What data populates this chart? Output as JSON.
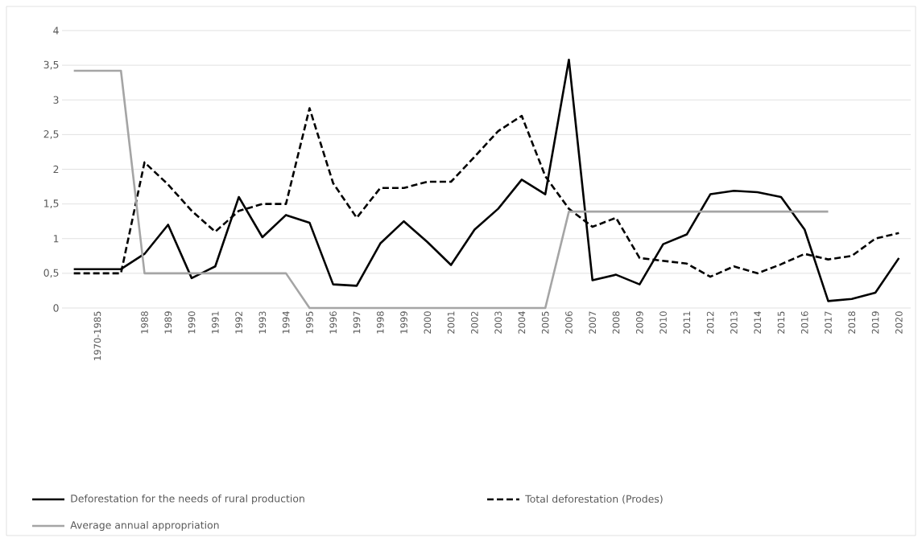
{
  "chart_data": {
    "type": "line",
    "categories": [
      null,
      "1970-1985",
      null,
      "1988",
      "1989",
      "1990",
      "1991",
      "1992",
      "1993",
      "1994",
      "1995",
      "1996",
      "1997",
      "1998",
      "1999",
      "2000",
      "2001",
      "2002",
      "2003",
      "2004",
      "2005",
      "2006",
      "2007",
      "2008",
      "2009",
      "2010",
      "2011",
      "2012",
      "2013",
      "2014",
      "2015",
      "2016",
      "2017",
      "2018",
      "2019",
      "2020"
    ],
    "series": [
      {
        "name": "Deforestation for the needs of rural production",
        "color": "#000000",
        "line_style": "solid",
        "values": [
          0.56,
          0.56,
          0.56,
          0.78,
          1.2,
          0.43,
          0.6,
          1.6,
          1.02,
          1.34,
          1.23,
          0.34,
          0.32,
          0.93,
          1.25,
          0.95,
          0.62,
          1.13,
          1.43,
          1.85,
          1.64,
          3.58,
          0.4,
          0.48,
          0.34,
          0.92,
          1.06,
          1.64,
          1.69,
          1.67,
          1.6,
          1.13,
          0.1,
          0.13,
          0.22,
          0.72
        ]
      },
      {
        "name": "Total deforestation (Prodes)",
        "color": "#000000",
        "line_style": "dashed",
        "values": [
          0.5,
          0.5,
          0.5,
          2.1,
          1.78,
          1.4,
          1.1,
          1.4,
          1.5,
          1.5,
          2.88,
          1.8,
          1.3,
          1.73,
          1.73,
          1.82,
          1.82,
          2.18,
          2.55,
          2.77,
          1.9,
          1.43,
          1.17,
          1.3,
          0.72,
          0.68,
          0.64,
          0.45,
          0.6,
          0.5,
          0.63,
          0.78,
          0.7,
          0.75,
          1.0,
          1.08
        ]
      },
      {
        "name": "Average annual appropriation",
        "color": "#a5a5a5",
        "line_style": "solid",
        "values": [
          3.42,
          3.42,
          3.42,
          0.5,
          0.5,
          0.5,
          0.5,
          0.5,
          0.5,
          0.5,
          0,
          0,
          0,
          0,
          0,
          0,
          0,
          0,
          0,
          0,
          0,
          1.39,
          1.39,
          1.39,
          1.39,
          1.39,
          1.39,
          1.39,
          1.39,
          1.39,
          1.39,
          1.39,
          1.39,
          null,
          null,
          null
        ]
      }
    ],
    "ylim": [
      0,
      4
    ],
    "yticks": [
      0,
      {
        "value": 0.5,
        "label": "0,5"
      },
      1,
      {
        "value": 1.5,
        "label": "1,5"
      },
      2,
      {
        "value": 2.5,
        "label": "2,5"
      },
      3,
      {
        "value": 3.5,
        "label": "3,5"
      },
      4
    ],
    "grid": "y",
    "legend": "bottom",
    "marker": "none"
  }
}
